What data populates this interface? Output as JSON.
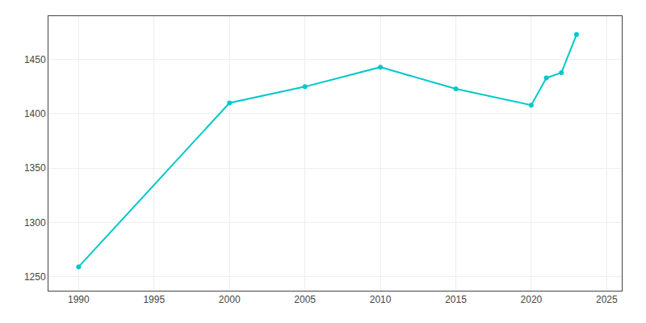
{
  "chart_data": {
    "type": "line",
    "x": [
      1990,
      2000,
      2005,
      2010,
      2015,
      2020,
      2021,
      2022,
      2023
    ],
    "values": [
      1259,
      1410,
      1425,
      1443,
      1423,
      1408,
      1433,
      1438,
      1473
    ],
    "color": "#00c8c8",
    "marker": "circle",
    "xlim": [
      1988,
      2026
    ],
    "ylim": [
      1237,
      1490
    ],
    "xticks": [
      1990,
      1995,
      2000,
      2005,
      2010,
      2015,
      2020,
      2025
    ],
    "yticks": [
      1250,
      1300,
      1350,
      1400,
      1450
    ],
    "grid": true
  }
}
